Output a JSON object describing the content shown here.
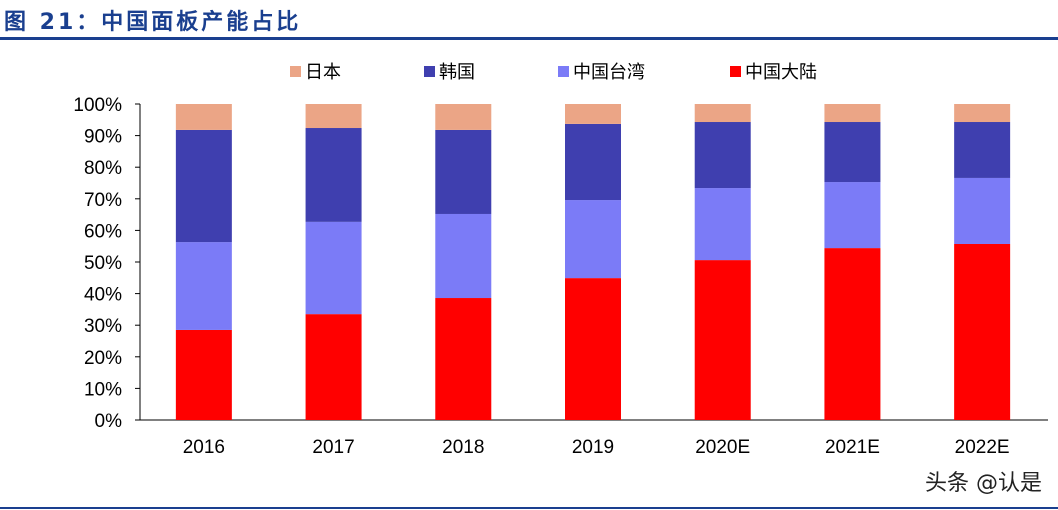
{
  "header": {
    "title": "图 21：中国面板产能占比"
  },
  "watermark": "头条 @认是",
  "chart_data": {
    "type": "bar",
    "stacked": true,
    "title": "",
    "xlabel": "",
    "ylabel": "",
    "ylim": [
      0,
      100
    ],
    "yticks": [
      "0%",
      "10%",
      "20%",
      "30%",
      "40%",
      "50%",
      "60%",
      "70%",
      "80%",
      "90%",
      "100%"
    ],
    "categories": [
      "2016",
      "2017",
      "2018",
      "2019",
      "2020E",
      "2021E",
      "2022E"
    ],
    "legend_position": "top",
    "grid": false,
    "series": [
      {
        "name": "中国大陆",
        "color": "#ff0000",
        "values": [
          28.5,
          33.5,
          38.6,
          44.9,
          50.6,
          54.4,
          55.7
        ]
      },
      {
        "name": "中国台湾",
        "color": "#7b7bf7",
        "values": [
          27.8,
          29.2,
          26.6,
          24.7,
          22.8,
          20.9,
          20.9
        ]
      },
      {
        "name": "韩国",
        "color": "#3f3faf",
        "values": [
          35.5,
          29.7,
          26.6,
          24.1,
          20.9,
          19.0,
          17.7
        ]
      },
      {
        "name": "日本",
        "color": "#eba586",
        "values": [
          8.2,
          7.6,
          8.2,
          6.3,
          5.7,
          5.7,
          5.7
        ]
      }
    ],
    "legend_order": [
      3,
      2,
      1,
      0
    ]
  }
}
